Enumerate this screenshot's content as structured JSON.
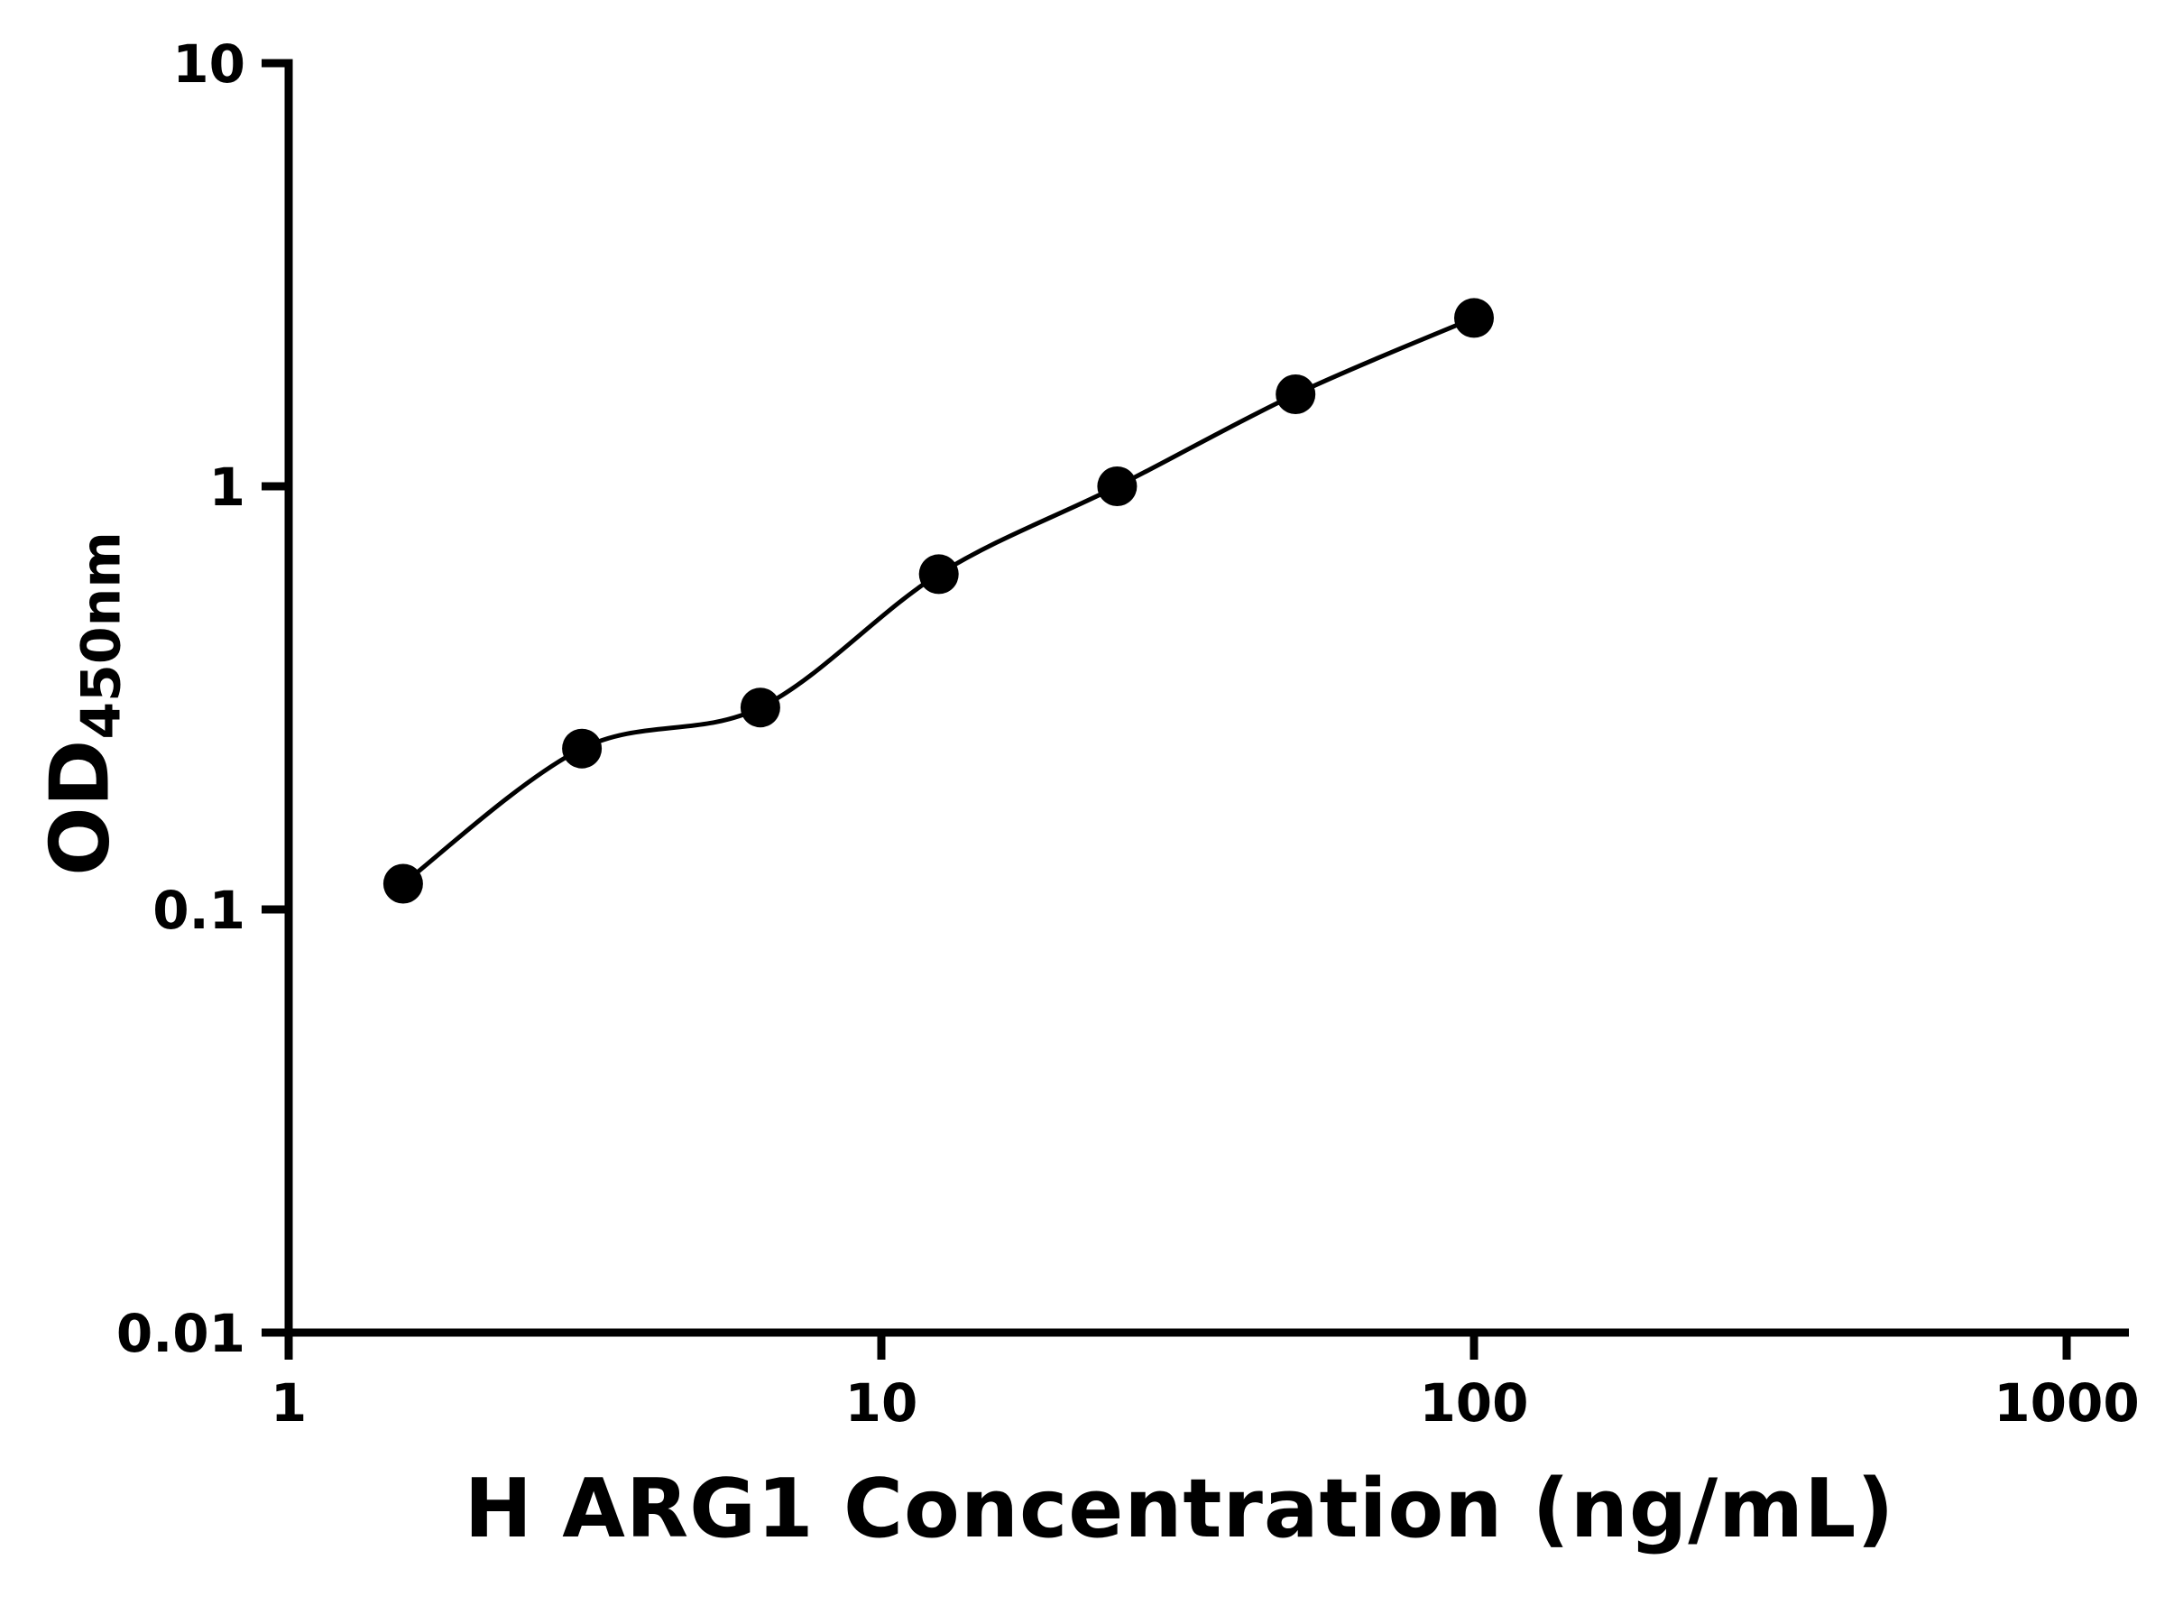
{
  "chart_data": {
    "type": "scatter",
    "title": "",
    "xlabel": "H ARG1 Concentration (ng/mL)",
    "ylabel_main": "OD",
    "ylabel_sub": "450nm",
    "x": [
      1.56,
      3.125,
      6.25,
      12.5,
      25,
      50,
      100
    ],
    "y": [
      0.115,
      0.24,
      0.3,
      0.62,
      1.0,
      1.65,
      2.5
    ],
    "fit_line": true,
    "xscale": "log",
    "yscale": "log",
    "xlim": [
      1,
      1000
    ],
    "ylim": [
      0.01,
      10
    ],
    "x_ticks": [
      1,
      10,
      100,
      1000
    ],
    "y_ticks": [
      0.01,
      0.1,
      1,
      10
    ],
    "grid": false,
    "legend": false,
    "marker_color": "#000000",
    "line_color": "#000000",
    "axis_color": "#000000"
  }
}
